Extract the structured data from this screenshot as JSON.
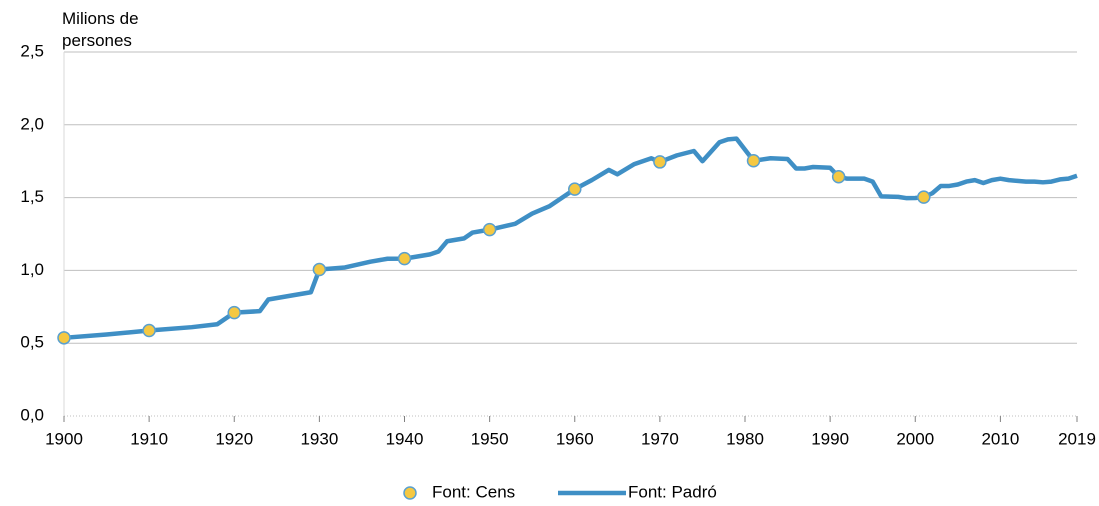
{
  "chart_data": {
    "type": "line",
    "y_label": "Milions de persones",
    "xlim": [
      1900,
      2019
    ],
    "xticks": [
      1900,
      1910,
      1920,
      1930,
      1940,
      1950,
      1960,
      1970,
      1980,
      1990,
      2000,
      2010,
      2019
    ],
    "ylim": [
      0,
      2.5
    ],
    "yticks": [
      {
        "value": 0,
        "label": "0,0"
      },
      {
        "value": 0.5,
        "label": "0,5"
      },
      {
        "value": 1,
        "label": "1,0"
      },
      {
        "value": 1.5,
        "label": "1,5"
      },
      {
        "value": 2,
        "label": "2,0"
      },
      {
        "value": 2.5,
        "label": "2,5"
      }
    ],
    "grid": true,
    "series": [
      {
        "name": "Font: Cens",
        "kind": "scatter",
        "color": "#f5c842",
        "edge": "#5aa0cf",
        "x": [
          1900,
          1910,
          1920,
          1930,
          1940,
          1950,
          1960,
          1970,
          1981,
          1991,
          2001
        ],
        "values": [
          0.537,
          0.587,
          0.71,
          1.006,
          1.081,
          1.28,
          1.558,
          1.745,
          1.753,
          1.643,
          1.503
        ]
      },
      {
        "name": "Font: Padró",
        "kind": "line",
        "color": "#3f8fc5",
        "x": [
          1900,
          1905,
          1910,
          1915,
          1918,
          1920,
          1923,
          1924,
          1927,
          1929,
          1930,
          1933,
          1936,
          1938,
          1940,
          1943,
          1944,
          1945,
          1947,
          1948,
          1950,
          1953,
          1955,
          1957,
          1960,
          1962,
          1964,
          1965,
          1967,
          1969,
          1970,
          1972,
          1974,
          1975,
          1977,
          1978,
          1979,
          1981,
          1983,
          1985,
          1986,
          1987,
          1988,
          1990,
          1991,
          1992,
          1994,
          1995,
          1996,
          1998,
          1999,
          2000,
          2001,
          2002,
          2003,
          2004,
          2005,
          2006,
          2007,
          2008,
          2009,
          2010,
          2011,
          2012,
          2013,
          2014,
          2015,
          2016,
          2017,
          2018,
          2019
        ],
        "values": [
          0.537,
          0.56,
          0.587,
          0.61,
          0.63,
          0.71,
          0.72,
          0.8,
          0.83,
          0.85,
          1.006,
          1.02,
          1.06,
          1.08,
          1.081,
          1.11,
          1.13,
          1.2,
          1.22,
          1.26,
          1.28,
          1.32,
          1.39,
          1.44,
          1.558,
          1.62,
          1.69,
          1.66,
          1.73,
          1.77,
          1.745,
          1.79,
          1.82,
          1.75,
          1.88,
          1.9,
          1.905,
          1.753,
          1.77,
          1.765,
          1.7,
          1.7,
          1.71,
          1.705,
          1.643,
          1.63,
          1.63,
          1.61,
          1.508,
          1.505,
          1.496,
          1.497,
          1.503,
          1.53,
          1.58,
          1.58,
          1.59,
          1.61,
          1.62,
          1.6,
          1.62,
          1.63,
          1.62,
          1.615,
          1.61,
          1.61,
          1.605,
          1.61,
          1.625,
          1.63,
          1.65
        ]
      }
    ]
  }
}
